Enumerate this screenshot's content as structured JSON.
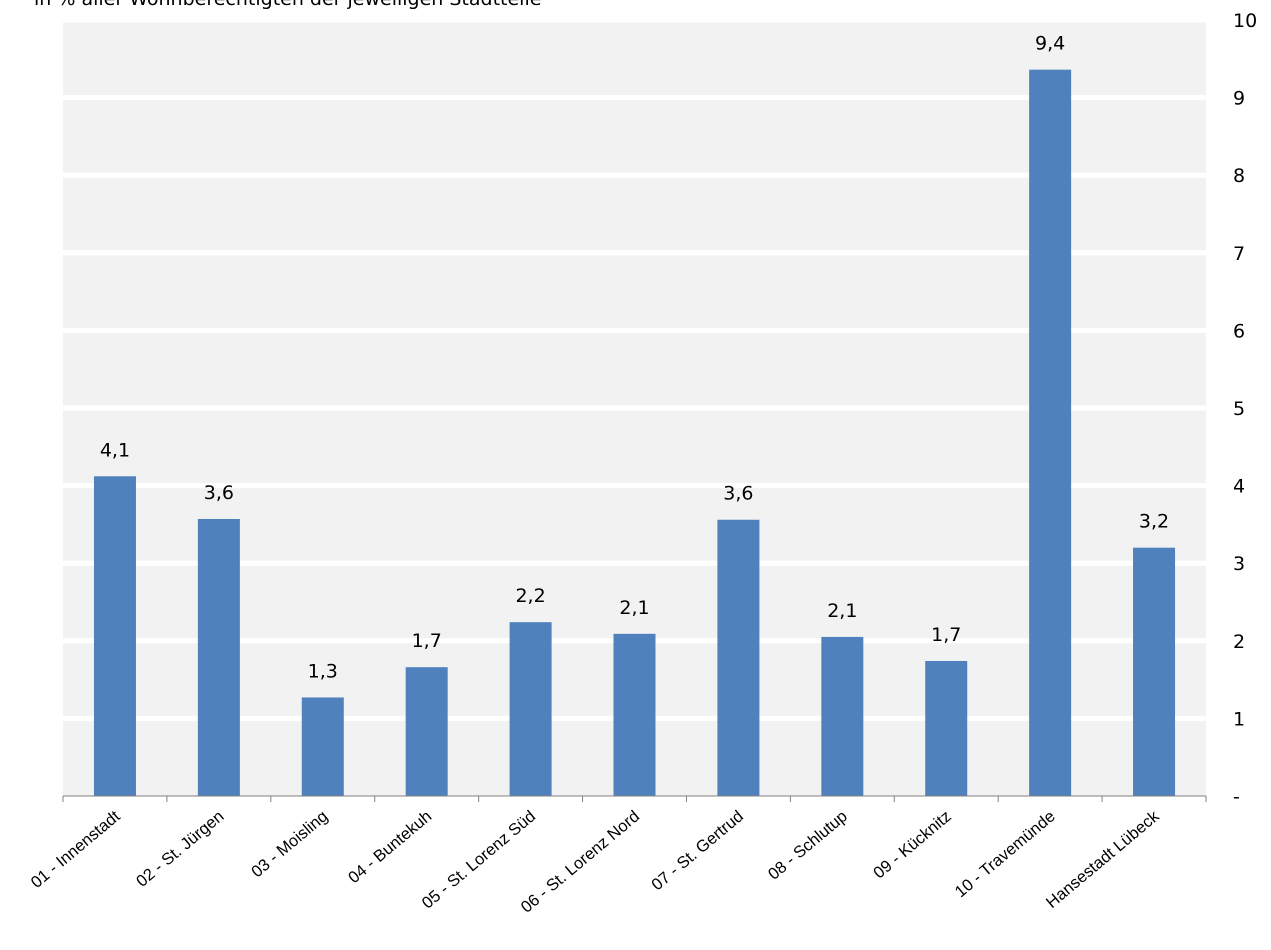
{
  "chart_data": {
    "type": "bar",
    "title": "in % aller Wohnberechtigten der jeweiligen Stadtteile",
    "categories": [
      "01 - Innenstadt",
      "02 - St. Jürgen",
      "03 - Moisling",
      "04 - Buntekuh",
      "05 - St. Lorenz Süd",
      "06 - St. Lorenz Nord",
      "07 - St. Gertrud",
      "08 - Schlutup",
      "09 - Kücknitz",
      "10 - Travemünde",
      "Hansestadt Lübeck"
    ],
    "values": [
      4.12,
      3.57,
      1.27,
      1.66,
      2.24,
      2.09,
      3.56,
      2.05,
      1.74,
      9.36,
      3.2
    ],
    "value_labels": [
      "4,1",
      "3,6",
      "1,3",
      "1,7",
      "2,2",
      "2,1",
      "3,6",
      "2,1",
      "1,7",
      "9,4",
      "3,2"
    ],
    "ylim": [
      0,
      10
    ],
    "y_ticks": [
      0,
      1,
      2,
      3,
      4,
      5,
      6,
      7,
      8,
      9,
      10
    ],
    "y_tick_labels": [
      "-",
      "1",
      "2",
      "3",
      "4",
      "5",
      "6",
      "7",
      "8",
      "9",
      "10"
    ],
    "y_axis_position": "right",
    "grid": true,
    "bar_color": "#4F81BD",
    "plot_background": "#F2F2F2"
  }
}
